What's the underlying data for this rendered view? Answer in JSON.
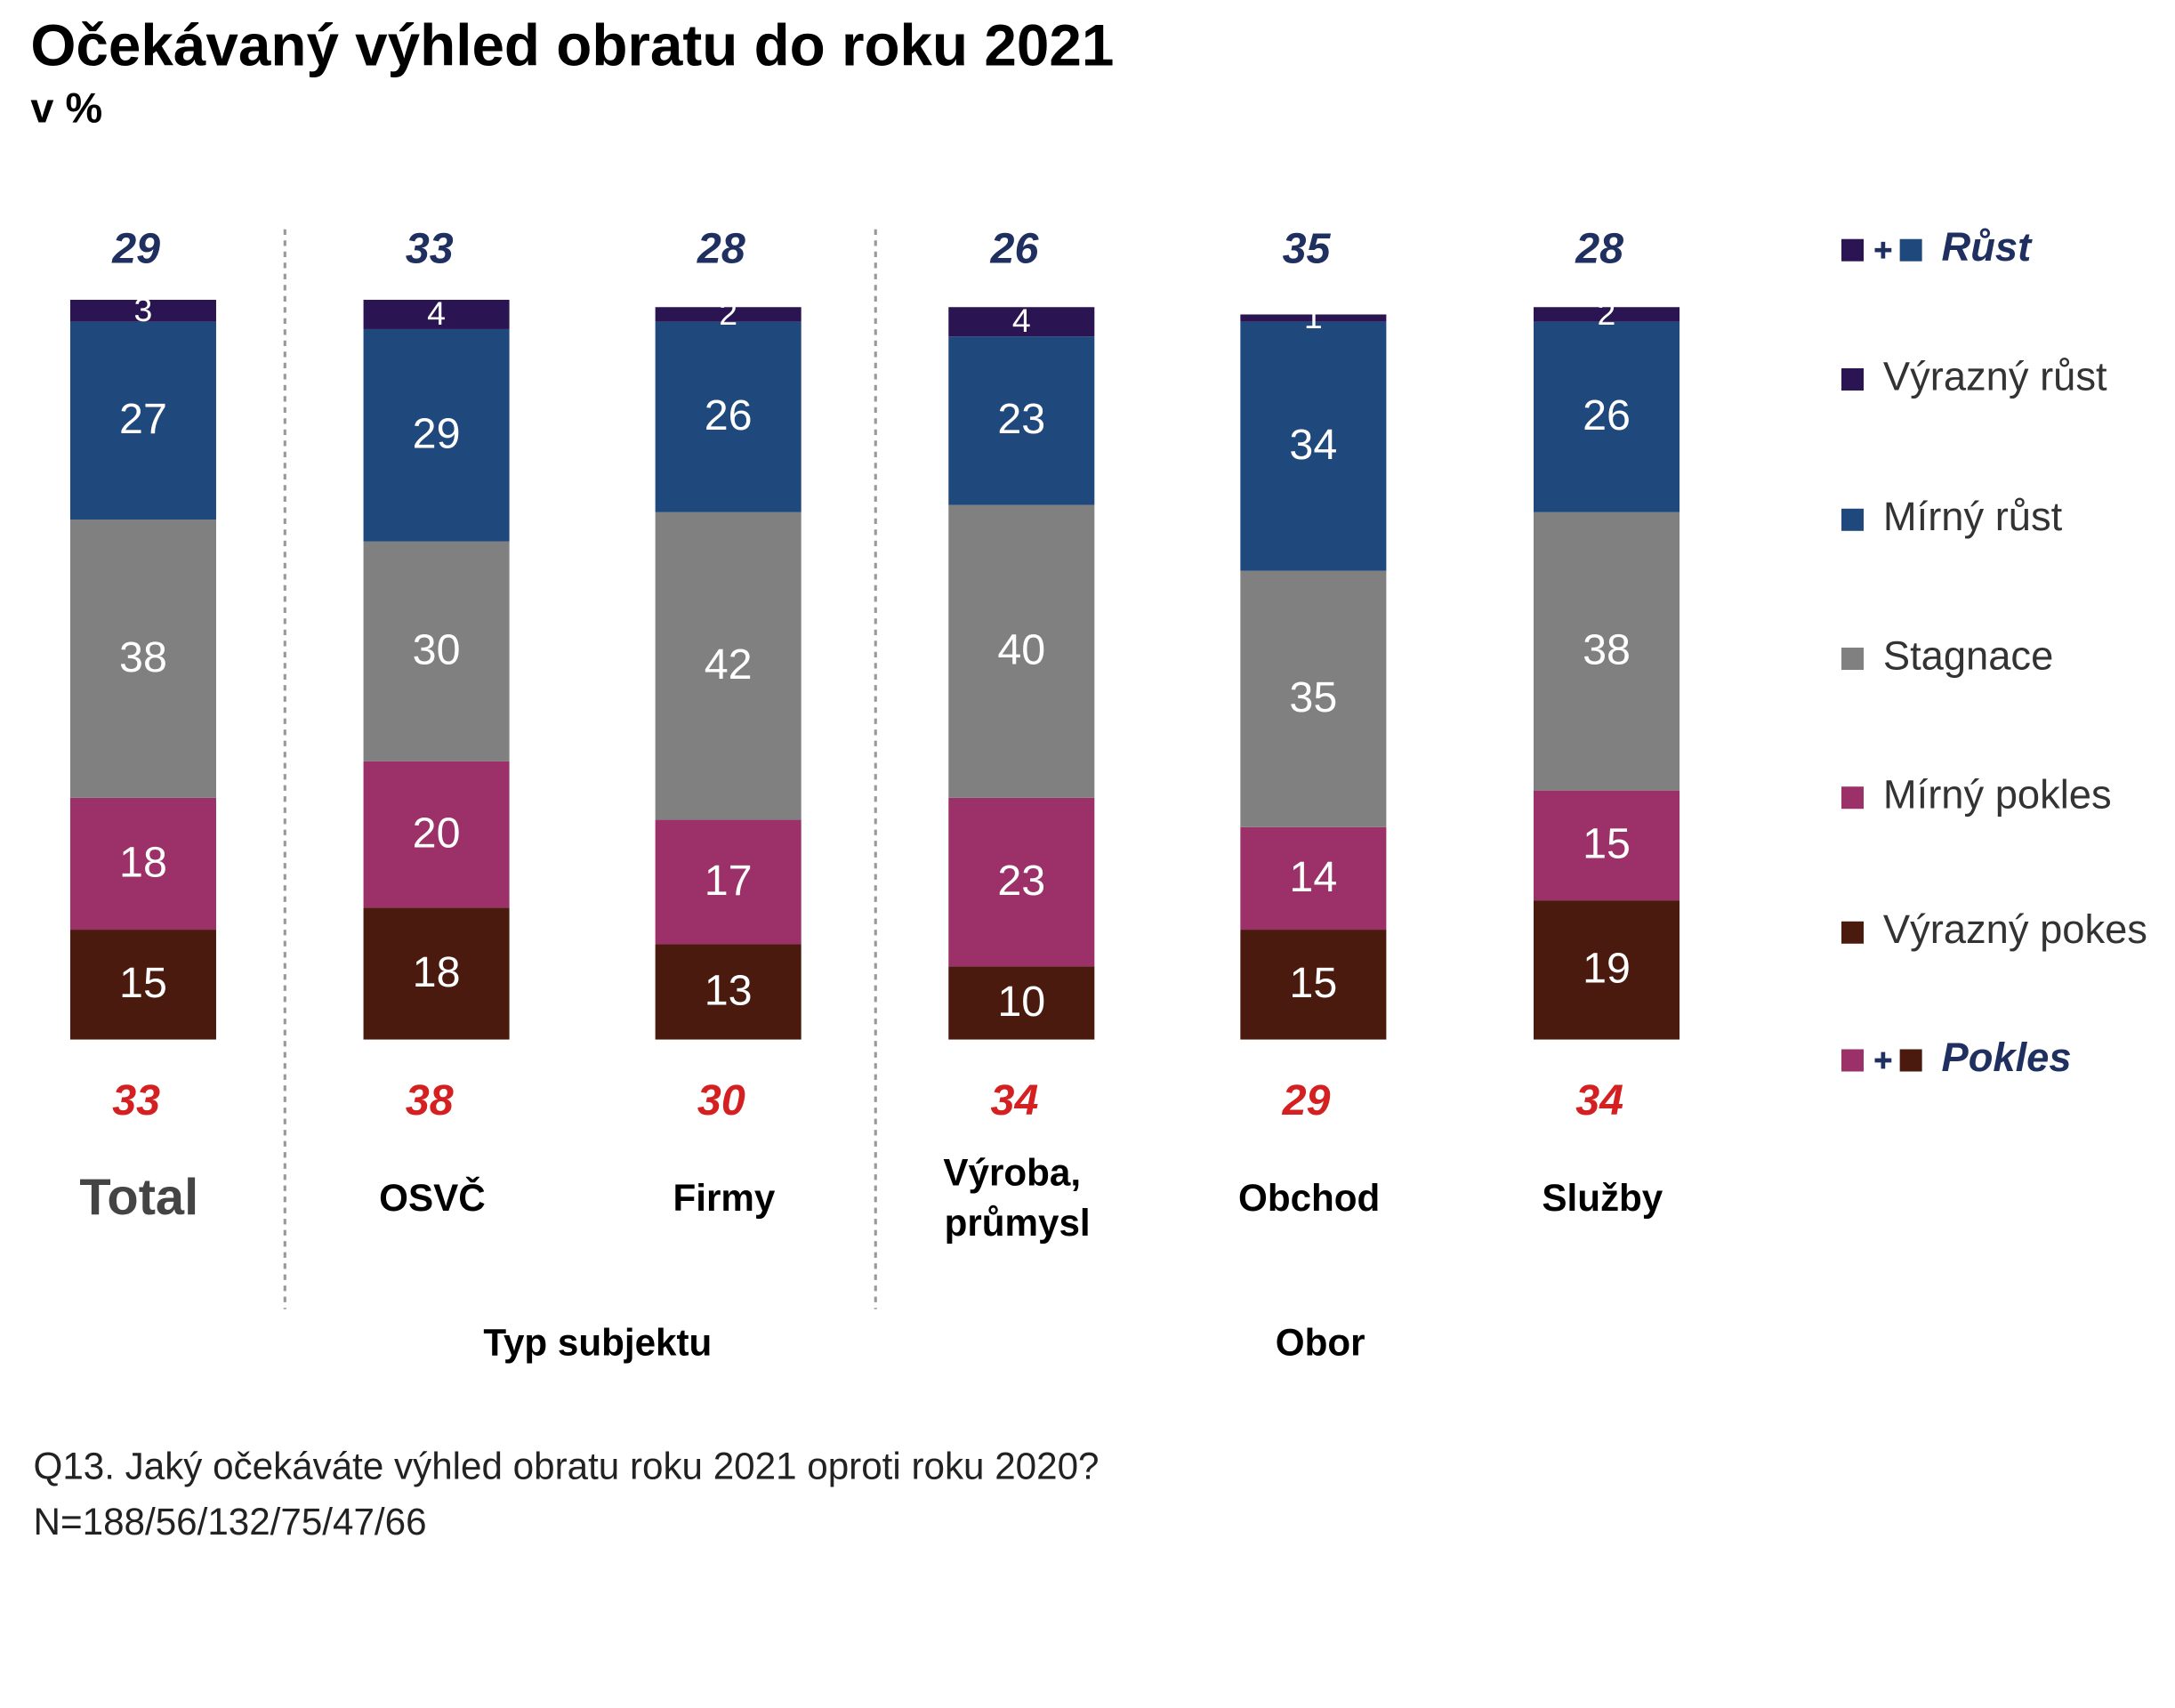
{
  "chart_data": {
    "type": "stacked-bar",
    "title": "Očekávaný výhled obratu do roku 2021",
    "subtitle": "v %",
    "categories": [
      "Total",
      "OSVČ",
      "Firmy",
      "Výroba, průmysl",
      "Obchod",
      "Služby"
    ],
    "series": [
      {
        "name": "Výrazný růst",
        "color": "#2b1452",
        "values": [
          3,
          4,
          2,
          4,
          1,
          2
        ]
      },
      {
        "name": "Mírný růst",
        "color": "#1f487c",
        "values": [
          27,
          29,
          26,
          23,
          34,
          26
        ]
      },
      {
        "name": "Stagnace",
        "color": "#808080",
        "values": [
          38,
          30,
          42,
          40,
          35,
          38
        ]
      },
      {
        "name": "Mírný pokles",
        "color": "#9b3168",
        "values": [
          18,
          20,
          17,
          23,
          14,
          15
        ]
      },
      {
        "name": "Výrazný pokes",
        "color": "#4a1a0e",
        "values": [
          15,
          18,
          13,
          10,
          15,
          19
        ]
      }
    ],
    "totals": [
      {
        "name": "Růst",
        "color": "#1f3060",
        "values": [
          29,
          33,
          28,
          26,
          35,
          28
        ]
      },
      {
        "name": "Pokles",
        "color": "#d42020",
        "values": [
          33,
          38,
          30,
          34,
          29,
          34
        ]
      }
    ],
    "groups": [
      {
        "label": "Typ subjektu"
      },
      {
        "label": "Obor"
      }
    ],
    "footnotes": [
      "Q13. Jaký očekáváte výhled obratu roku 2021 oproti roku 2020?",
      "N=188/56/132/75/47/66"
    ]
  }
}
